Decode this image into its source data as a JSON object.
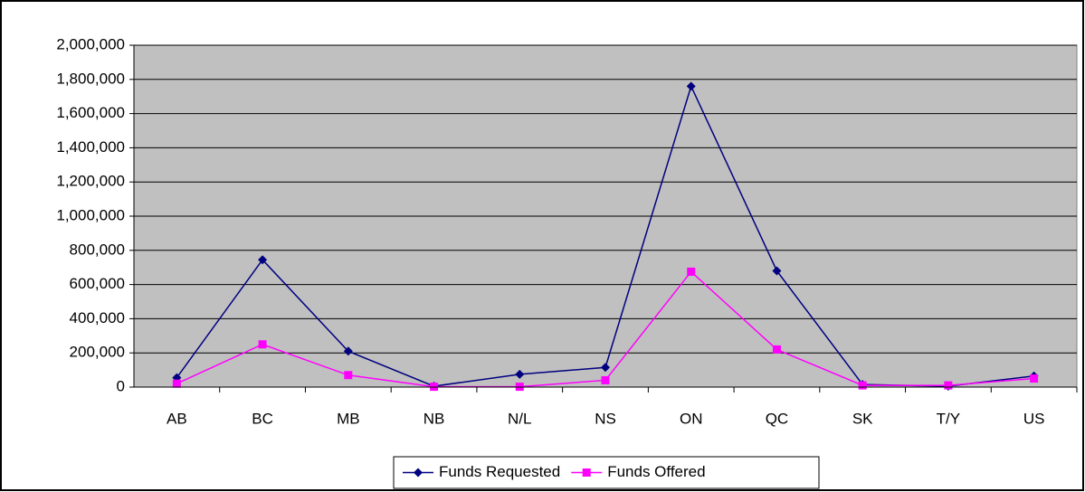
{
  "chart_data": {
    "type": "line",
    "categories": [
      "AB",
      "BC",
      "MB",
      "NB",
      "N/L",
      "NS",
      "ON",
      "QC",
      "SK",
      "T/Y",
      "US"
    ],
    "series": [
      {
        "name": "Funds Requested",
        "color": "#000080",
        "marker": "diamond",
        "values": [
          55000,
          745000,
          210000,
          5000,
          75000,
          115000,
          1760000,
          680000,
          15000,
          5000,
          65000
        ]
      },
      {
        "name": "Funds Offered",
        "color": "#ff00ff",
        "marker": "square",
        "values": [
          20000,
          250000,
          70000,
          2000,
          2000,
          40000,
          675000,
          220000,
          10000,
          10000,
          50000
        ]
      }
    ],
    "ylim": [
      0,
      2000000
    ],
    "yticks": [
      0,
      {
        "value": 200000,
        "label": "200,000"
      },
      {
        "value": 400000,
        "label": "400,000"
      },
      {
        "value": 600000,
        "label": "600,000"
      },
      {
        "value": 800000,
        "label": "800,000"
      },
      {
        "value": 1000000,
        "label": "1,000,000"
      },
      {
        "value": 1200000,
        "label": "1,200,000"
      },
      {
        "value": 1400000,
        "label": "1,400,000"
      },
      {
        "value": 1600000,
        "label": "1,600,000"
      },
      {
        "value": 1800000,
        "label": "1,800,000"
      },
      {
        "value": 2000000,
        "label": "2,000,000"
      }
    ],
    "grid": true,
    "legend": "bottom"
  }
}
